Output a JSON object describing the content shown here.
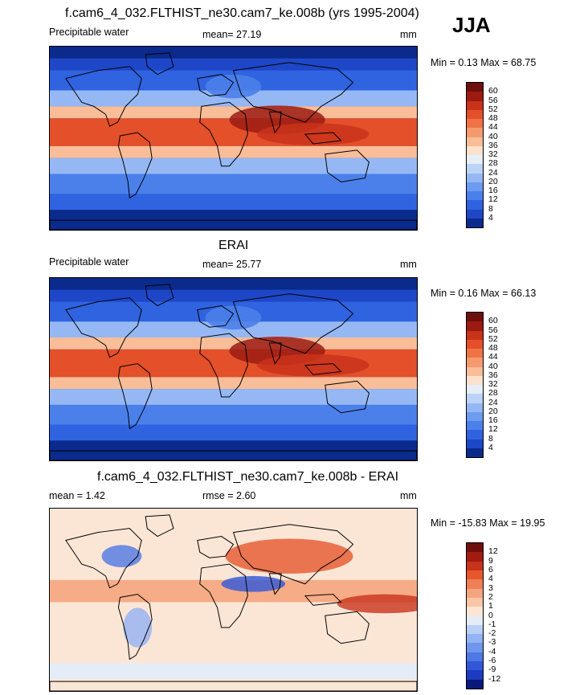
{
  "season": "JJA",
  "palette": {
    "precip": [
      "#0a2a8c",
      "#1e47c8",
      "#2f63e0",
      "#4b80ea",
      "#6c9bf0",
      "#95b8f5",
      "#bcd3f8",
      "#e6eef8",
      "#fce2cc",
      "#f9bd98",
      "#f59a6e",
      "#f07347",
      "#e3502a",
      "#c9321b",
      "#9b1b12",
      "#6e0f0c"
    ],
    "diff": [
      "#0a1a7a",
      "#1d3bc0",
      "#3157d8",
      "#4f78e4",
      "#6f96ec",
      "#93b3f2",
      "#b9cff6",
      "#e4ecf7",
      "#fbe6d6",
      "#f9c6a6",
      "#f5a57e",
      "#f07e56",
      "#e6572e",
      "#c9331b",
      "#a21b11",
      "#6e0f0c"
    ]
  },
  "panels": [
    {
      "title": "f.cam6_4_032.FLTHIST_ne30.cam7_ke.008b (yrs 1995-2004)",
      "left_label": "Precipitable water",
      "mean_text": "mean=  27.19",
      "units": "mm",
      "minmax": "Min =   0.13 Max =  68.75"
    },
    {
      "title": "ERAI",
      "left_label": "Precipitable water",
      "mean_text": "mean=  25.77",
      "units": "mm",
      "minmax": "Min =   0.16 Max =  66.13"
    },
    {
      "title": "f.cam6_4_032.FLTHIST_ne30.cam7_ke.008b - ERAI",
      "left_label": "mean =   1.42",
      "mean_text": "rmse =   2.60",
      "units": "mm",
      "minmax": "Min = -15.83 Max =  19.95"
    }
  ],
  "chart_data": [
    {
      "type": "heatmap",
      "title": "f.cam6_4_032.FLTHIST_ne30.cam7_ke.008b (yrs 1995-2004)",
      "variable": "Precipitable water",
      "units": "mm",
      "mean": 27.19,
      "min": 0.13,
      "max": 68.75,
      "colorbar_levels": [
        4,
        8,
        12,
        16,
        20,
        24,
        28,
        32,
        36,
        40,
        44,
        48,
        52,
        56,
        60
      ]
    },
    {
      "type": "heatmap",
      "title": "ERAI",
      "variable": "Precipitable water",
      "units": "mm",
      "mean": 25.77,
      "min": 0.16,
      "max": 66.13,
      "colorbar_levels": [
        4,
        8,
        12,
        16,
        20,
        24,
        28,
        32,
        36,
        40,
        44,
        48,
        52,
        56,
        60
      ]
    },
    {
      "type": "heatmap",
      "title": "f.cam6_4_032.FLTHIST_ne30.cam7_ke.008b - ERAI",
      "units": "mm",
      "mean": 1.42,
      "rmse": 2.6,
      "min": -15.83,
      "max": 19.95,
      "colorbar_levels": [
        -12,
        -9,
        -6,
        -4,
        -3,
        -2,
        -1,
        0,
        1,
        2,
        3,
        4,
        6,
        9,
        12
      ]
    }
  ]
}
